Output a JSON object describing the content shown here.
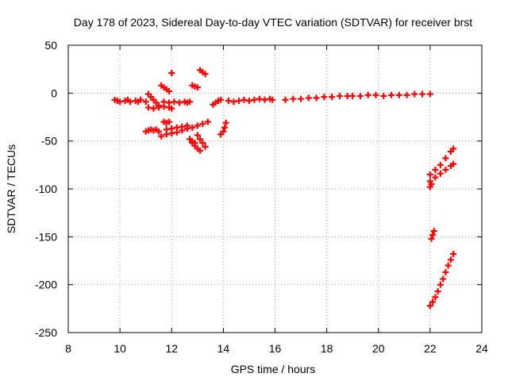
{
  "chart_data": {
    "type": "scatter",
    "title": "Day 178 of 2023, Sidereal Day-to-day VTEC variation (SDTVAR) for receiver brst",
    "xlabel": "GPS time / hours",
    "ylabel": "SDTVAR / TECUs",
    "xlim": [
      8,
      24
    ],
    "ylim": [
      -250,
      50
    ],
    "xticks": [
      "8",
      "10",
      "12",
      "14",
      "16",
      "18",
      "20",
      "22",
      "24"
    ],
    "yticks": [
      "50",
      "0",
      "-50",
      "-100",
      "-150",
      "-200",
      "-250"
    ],
    "grid": true,
    "marker": "plus",
    "color": "#ff0000",
    "points": [
      [
        9.8,
        -7
      ],
      [
        10.0,
        -9
      ],
      [
        10.2,
        -8
      ],
      [
        10.4,
        -9
      ],
      [
        10.6,
        -8
      ],
      [
        10.8,
        -7
      ],
      [
        11.0,
        -9
      ],
      [
        9.9,
        -8
      ],
      [
        10.3,
        -7
      ],
      [
        10.7,
        -9
      ],
      [
        11.0,
        -40
      ],
      [
        11.1,
        -39
      ],
      [
        11.2,
        -38
      ],
      [
        11.3,
        -39
      ],
      [
        11.4,
        -38
      ],
      [
        11.5,
        -40
      ],
      [
        11.1,
        -15
      ],
      [
        11.3,
        -16
      ],
      [
        11.5,
        -15
      ],
      [
        11.7,
        -14
      ],
      [
        11.9,
        -15
      ],
      [
        12.0,
        -16
      ],
      [
        11.7,
        -9
      ],
      [
        11.9,
        -10
      ],
      [
        12.1,
        -9
      ],
      [
        12.3,
        -10
      ],
      [
        12.5,
        -9
      ],
      [
        12.6,
        -10
      ],
      [
        12.7,
        -9
      ],
      [
        11.1,
        -1
      ],
      [
        11.2,
        -4
      ],
      [
        11.3,
        -7
      ],
      [
        11.4,
        -10
      ],
      [
        11.5,
        -13
      ],
      [
        11.6,
        8
      ],
      [
        11.7,
        6
      ],
      [
        11.8,
        4
      ],
      [
        11.9,
        2
      ],
      [
        11.7,
        -30
      ],
      [
        11.8,
        -31
      ],
      [
        11.9,
        -30
      ],
      [
        12.0,
        21
      ],
      [
        11.6,
        -45
      ],
      [
        11.8,
        -43
      ],
      [
        12.0,
        -42
      ],
      [
        12.2,
        -41
      ],
      [
        12.4,
        -39
      ],
      [
        12.6,
        -37
      ],
      [
        12.8,
        -36
      ],
      [
        13.0,
        -34
      ],
      [
        13.2,
        -32
      ],
      [
        13.4,
        -30
      ],
      [
        11.8,
        -38
      ],
      [
        12.0,
        -37
      ],
      [
        12.2,
        -36
      ],
      [
        12.4,
        -35
      ],
      [
        12.6,
        -34
      ],
      [
        12.8,
        -52
      ],
      [
        12.9,
        -55
      ],
      [
        13.0,
        -58
      ],
      [
        13.1,
        -60
      ],
      [
        13.0,
        -44
      ],
      [
        13.1,
        -48
      ],
      [
        13.2,
        -52
      ],
      [
        13.3,
        -56
      ],
      [
        12.7,
        -48
      ],
      [
        12.8,
        -50
      ],
      [
        12.9,
        -52
      ],
      [
        12.8,
        8
      ],
      [
        12.9,
        7
      ],
      [
        13.0,
        6
      ],
      [
        13.1,
        24
      ],
      [
        13.2,
        22
      ],
      [
        13.3,
        20
      ],
      [
        13.6,
        -12
      ],
      [
        13.7,
        -10
      ],
      [
        13.8,
        -8
      ],
      [
        13.9,
        -7
      ],
      [
        13.9,
        -43
      ],
      [
        14.0,
        -40
      ],
      [
        14.05,
        -36
      ],
      [
        14.1,
        -31
      ],
      [
        14.2,
        -8
      ],
      [
        14.4,
        -9
      ],
      [
        14.6,
        -8
      ],
      [
        14.8,
        -7
      ],
      [
        15.0,
        -8
      ],
      [
        15.2,
        -7
      ],
      [
        15.4,
        -6
      ],
      [
        15.6,
        -7
      ],
      [
        15.8,
        -6
      ],
      [
        15.9,
        -7
      ],
      [
        16.4,
        -7
      ],
      [
        16.7,
        -6
      ],
      [
        17.0,
        -6
      ],
      [
        17.3,
        -5
      ],
      [
        17.6,
        -5
      ],
      [
        17.9,
        -4
      ],
      [
        18.2,
        -4
      ],
      [
        18.5,
        -3
      ],
      [
        18.8,
        -3
      ],
      [
        19.0,
        -3
      ],
      [
        19.3,
        -3
      ],
      [
        19.6,
        -2
      ],
      [
        19.9,
        -2
      ],
      [
        20.2,
        -3
      ],
      [
        20.5,
        -2
      ],
      [
        20.8,
        -2
      ],
      [
        21.1,
        -2
      ],
      [
        21.4,
        -1
      ],
      [
        21.7,
        -1
      ],
      [
        22.0,
        -1
      ],
      [
        22.0,
        -85
      ],
      [
        22.2,
        -80
      ],
      [
        22.4,
        -75
      ],
      [
        22.6,
        -68
      ],
      [
        22.8,
        -61
      ],
      [
        22.9,
        -58
      ],
      [
        22.0,
        -92
      ],
      [
        22.2,
        -88
      ],
      [
        22.4,
        -84
      ],
      [
        22.6,
        -80
      ],
      [
        22.8,
        -76
      ],
      [
        22.9,
        -74
      ],
      [
        22.0,
        -98
      ],
      [
        22.05,
        -95
      ],
      [
        22.05,
        -152
      ],
      [
        22.1,
        -148
      ],
      [
        22.15,
        -144
      ],
      [
        22.0,
        -222
      ],
      [
        22.1,
        -218
      ],
      [
        22.2,
        -213
      ],
      [
        22.3,
        -207
      ],
      [
        22.4,
        -200
      ],
      [
        22.5,
        -194
      ],
      [
        22.6,
        -187
      ],
      [
        22.7,
        -180
      ],
      [
        22.8,
        -174
      ],
      [
        22.9,
        -168
      ]
    ]
  }
}
